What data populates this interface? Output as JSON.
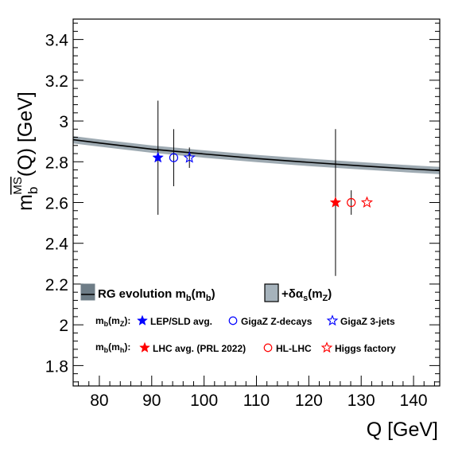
{
  "chart_data": {
    "type": "scatter",
    "title": "",
    "xlabel": "Q [GeV]",
    "ylabel_main": "m",
    "ylabel_sub": "b",
    "ylabel_sup": "MS",
    "ylabel_rest": "(Q) [GeV]",
    "xlim": [
      75,
      145
    ],
    "ylim": [
      1.7,
      3.5
    ],
    "xticks": [
      80,
      90,
      100,
      110,
      120,
      130,
      140
    ],
    "yticks": [
      1.8,
      2.0,
      2.2,
      2.4,
      2.6,
      2.8,
      3.0,
      3.2,
      3.4
    ],
    "ytick_labels": [
      "1.8",
      "2",
      "2.2",
      "2.4",
      "2.6",
      "2.8",
      "3",
      "3.2",
      "3.4"
    ],
    "band": {
      "x": [
        75,
        80,
        90,
        100,
        110,
        120,
        130,
        140,
        145
      ],
      "y": [
        2.908,
        2.892,
        2.862,
        2.838,
        2.816,
        2.797,
        2.78,
        2.764,
        2.757
      ],
      "half_width": 0.018,
      "line_color": "#000000",
      "fill_color": "#8d9ba5"
    },
    "series": [
      {
        "label": "LEP/SLD avg.",
        "group": "mb(mZ)",
        "x": 91.2,
        "y": 2.82,
        "err": 0.28,
        "marker": "star-filled",
        "color": "#0000ff"
      },
      {
        "label": "GigaZ Z-decays",
        "group": "mb(mZ)",
        "x": 94.2,
        "y": 2.82,
        "err": 0.14,
        "marker": "circle-open",
        "color": "#0000ff"
      },
      {
        "label": "GigaZ 3-jets",
        "group": "mb(mZ)",
        "x": 97.2,
        "y": 2.82,
        "err": 0.05,
        "marker": "star-open",
        "color": "#0000ff"
      },
      {
        "label": "LHC avg. (PRL 2022)",
        "group": "mb(mh)",
        "x": 125.1,
        "y": 2.6,
        "err": 0.36,
        "marker": "star-filled",
        "color": "#ff0000"
      },
      {
        "label": "HL-LHC",
        "group": "mb(mh)",
        "x": 128.1,
        "y": 2.6,
        "err": 0.06,
        "marker": "circle-open",
        "color": "#ff0000"
      },
      {
        "label": "Higgs factory",
        "group": "mb(mh)",
        "x": 131.1,
        "y": 2.6,
        "err": 0.0,
        "marker": "star-open",
        "color": "#ff0000"
      }
    ]
  },
  "legend": {
    "band_main": "RG evolution m",
    "band_main_sub": "b",
    "band_main_rest": "(m",
    "band_main_rest_sub": "b",
    "band_main_close": ")",
    "band_alpha": "+δα",
    "band_alpha_sub": "s",
    "band_alpha_rest": "(m",
    "band_alpha_rest_sub": "Z",
    "band_alpha_close": ")",
    "row1_prefix": "m",
    "row1_prefix_sub": "b",
    "row1_prefix_rest": "(m",
    "row1_prefix_rest_sub": "Z",
    "row1_prefix_close": "):",
    "row2_prefix": "m",
    "row2_prefix_sub": "b",
    "row2_prefix_rest": "(m",
    "row2_prefix_rest_sub": "h",
    "row2_prefix_close": "):"
  }
}
